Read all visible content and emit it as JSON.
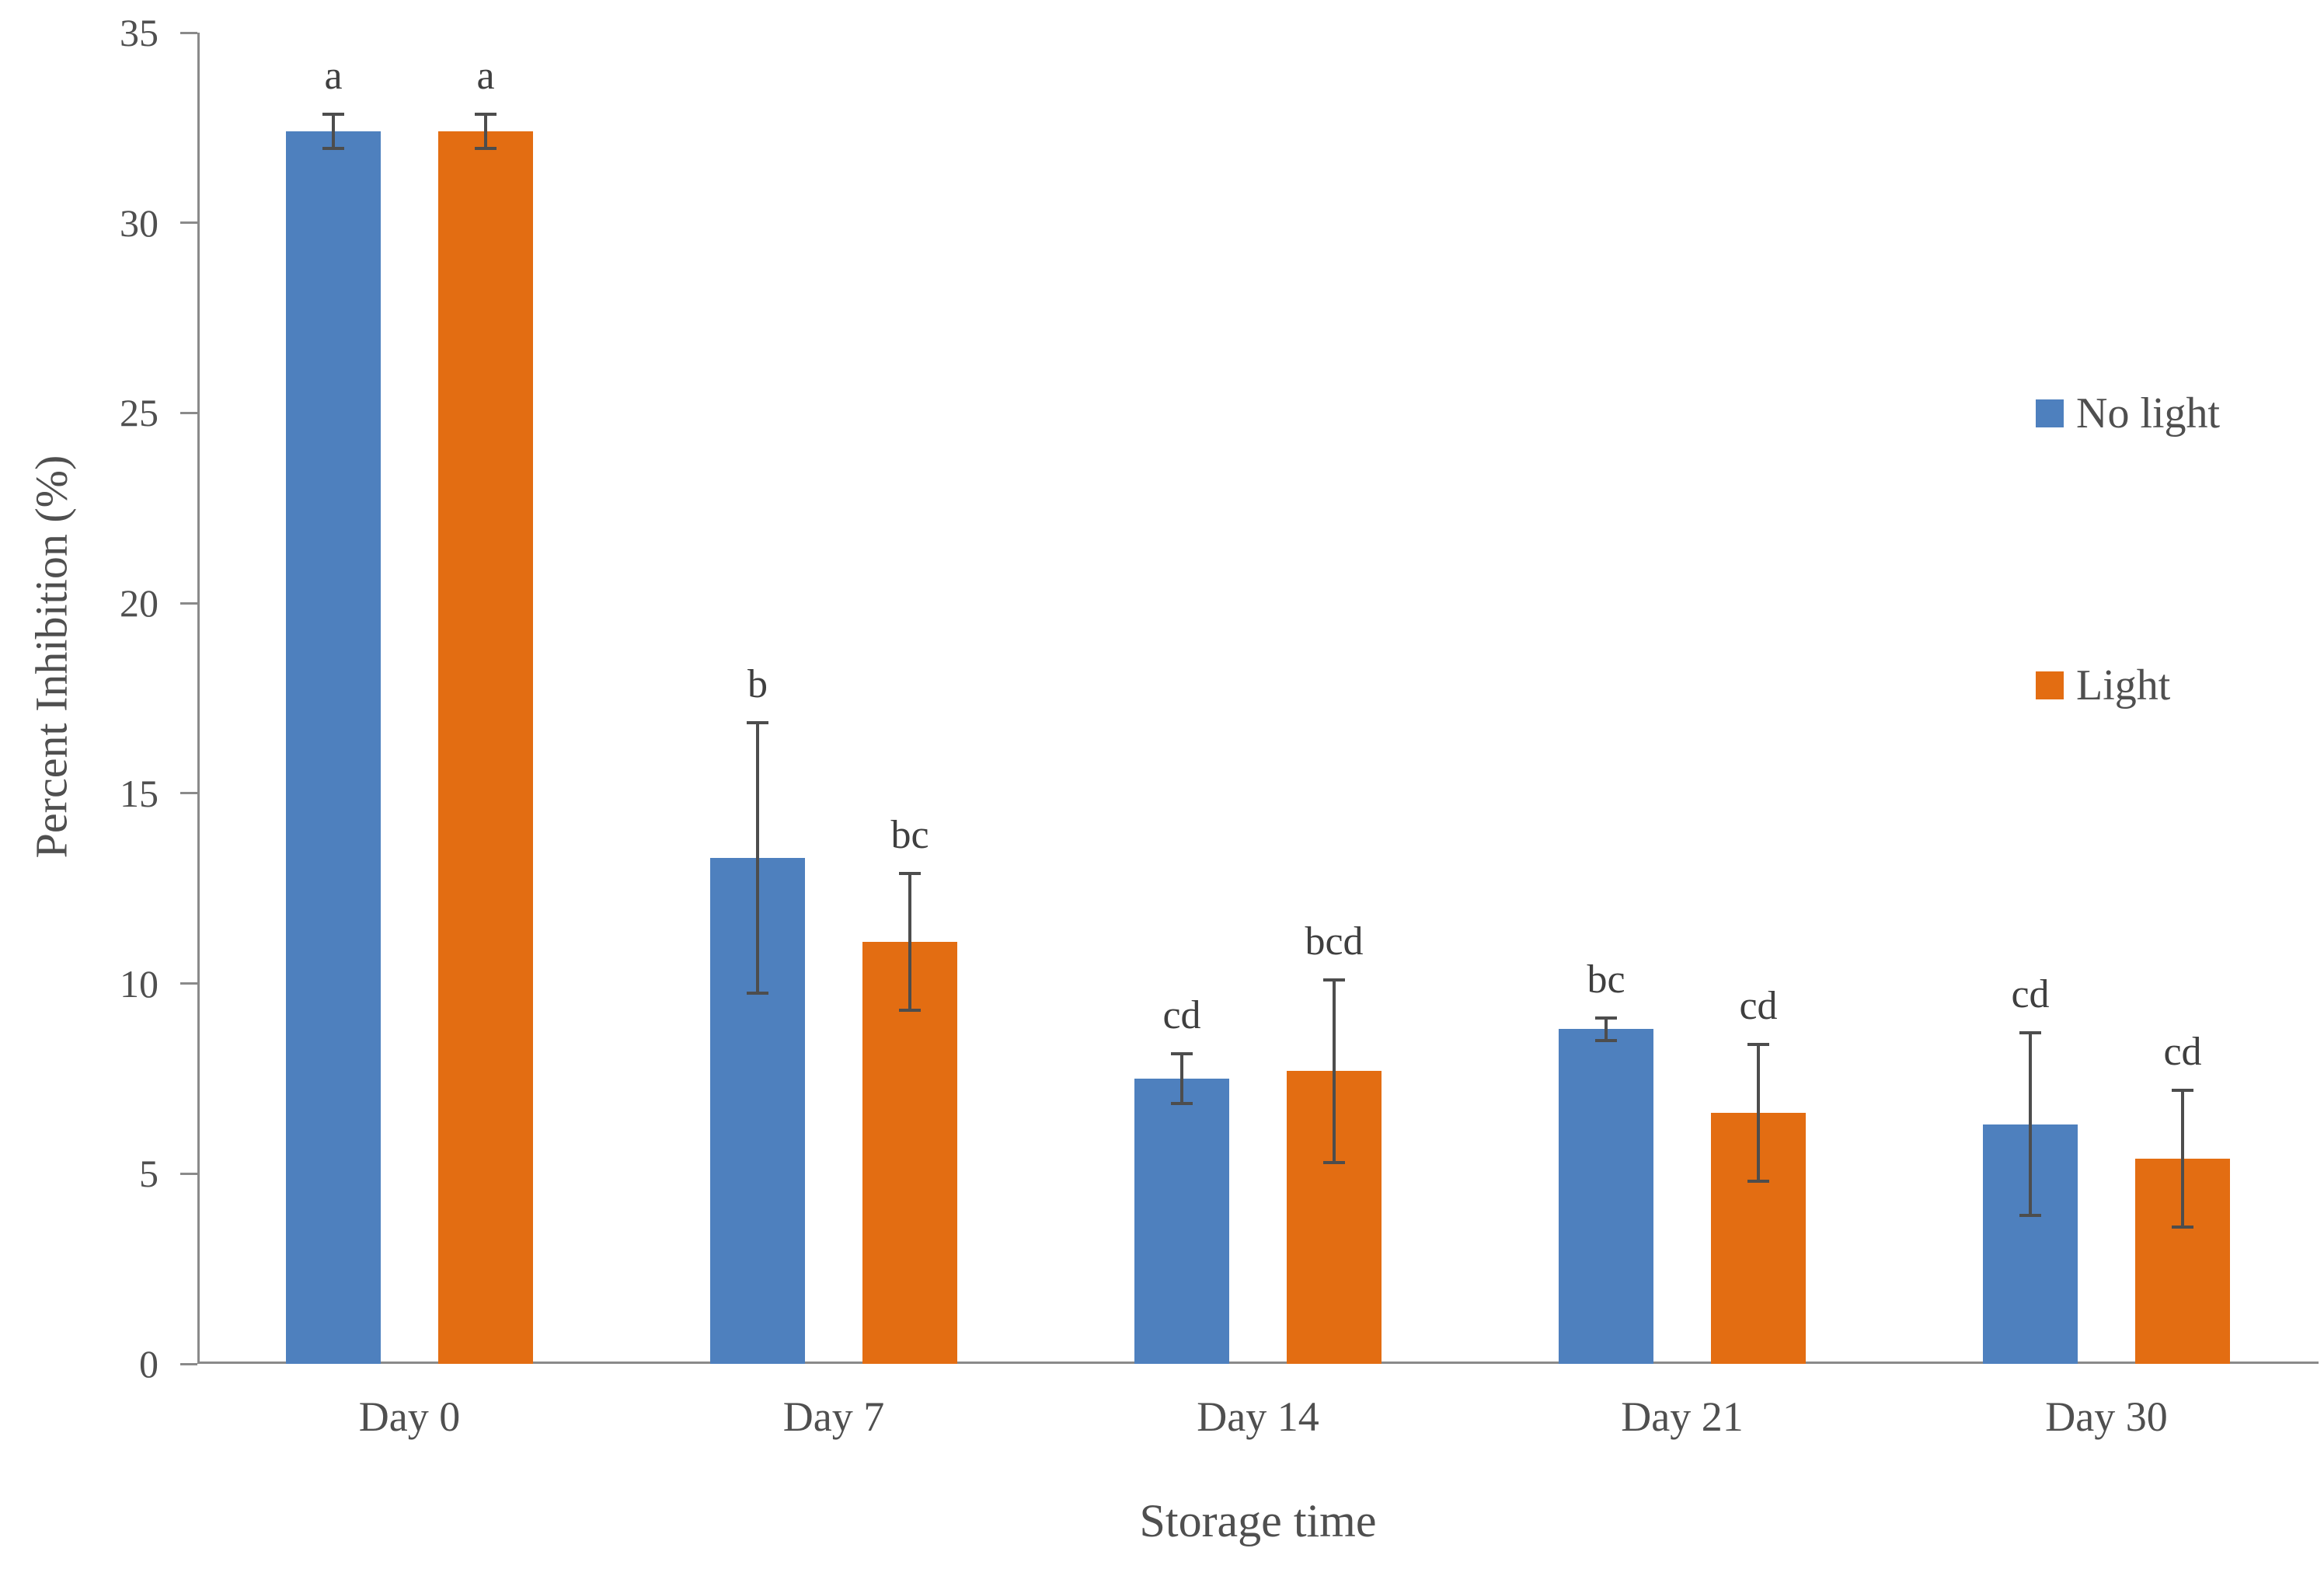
{
  "chart_data": {
    "type": "bar",
    "title": "",
    "categories": [
      "Day 0",
      "Day 7",
      "Day 14",
      "Day 21",
      "Day 30"
    ],
    "series": [
      {
        "name": "No light",
        "color": "#4E80BE",
        "values": [
          32.4,
          13.3,
          7.5,
          8.8,
          6.3
        ],
        "errors": [
          0.45,
          3.55,
          0.65,
          0.3,
          2.4
        ],
        "letters": [
          "a",
          "b",
          "cd",
          "bc",
          "cd"
        ]
      },
      {
        "name": "Light",
        "color": "#E36D12",
        "values": [
          32.4,
          11.1,
          7.7,
          6.6,
          5.4
        ],
        "errors": [
          0.45,
          1.8,
          2.4,
          1.8,
          1.8
        ],
        "letters": [
          "a",
          "bc",
          "bcd",
          "cd",
          "cd"
        ]
      }
    ],
    "xlabel": "Storage time",
    "ylabel": "Percent Inhibition (%)",
    "ylim": [
      0,
      35
    ],
    "yticks": [
      0,
      5,
      10,
      15,
      20,
      25,
      30,
      35
    ],
    "grid": false,
    "error_bars": true,
    "legend_position": "right-inside",
    "colors": {
      "axis_line": "#8A8A8A",
      "tick_text": "#4F4F4F",
      "error_bar": "#4D4D4D",
      "letter_text": "#3F3F3F",
      "legend_text": "#4F4F4F"
    }
  }
}
